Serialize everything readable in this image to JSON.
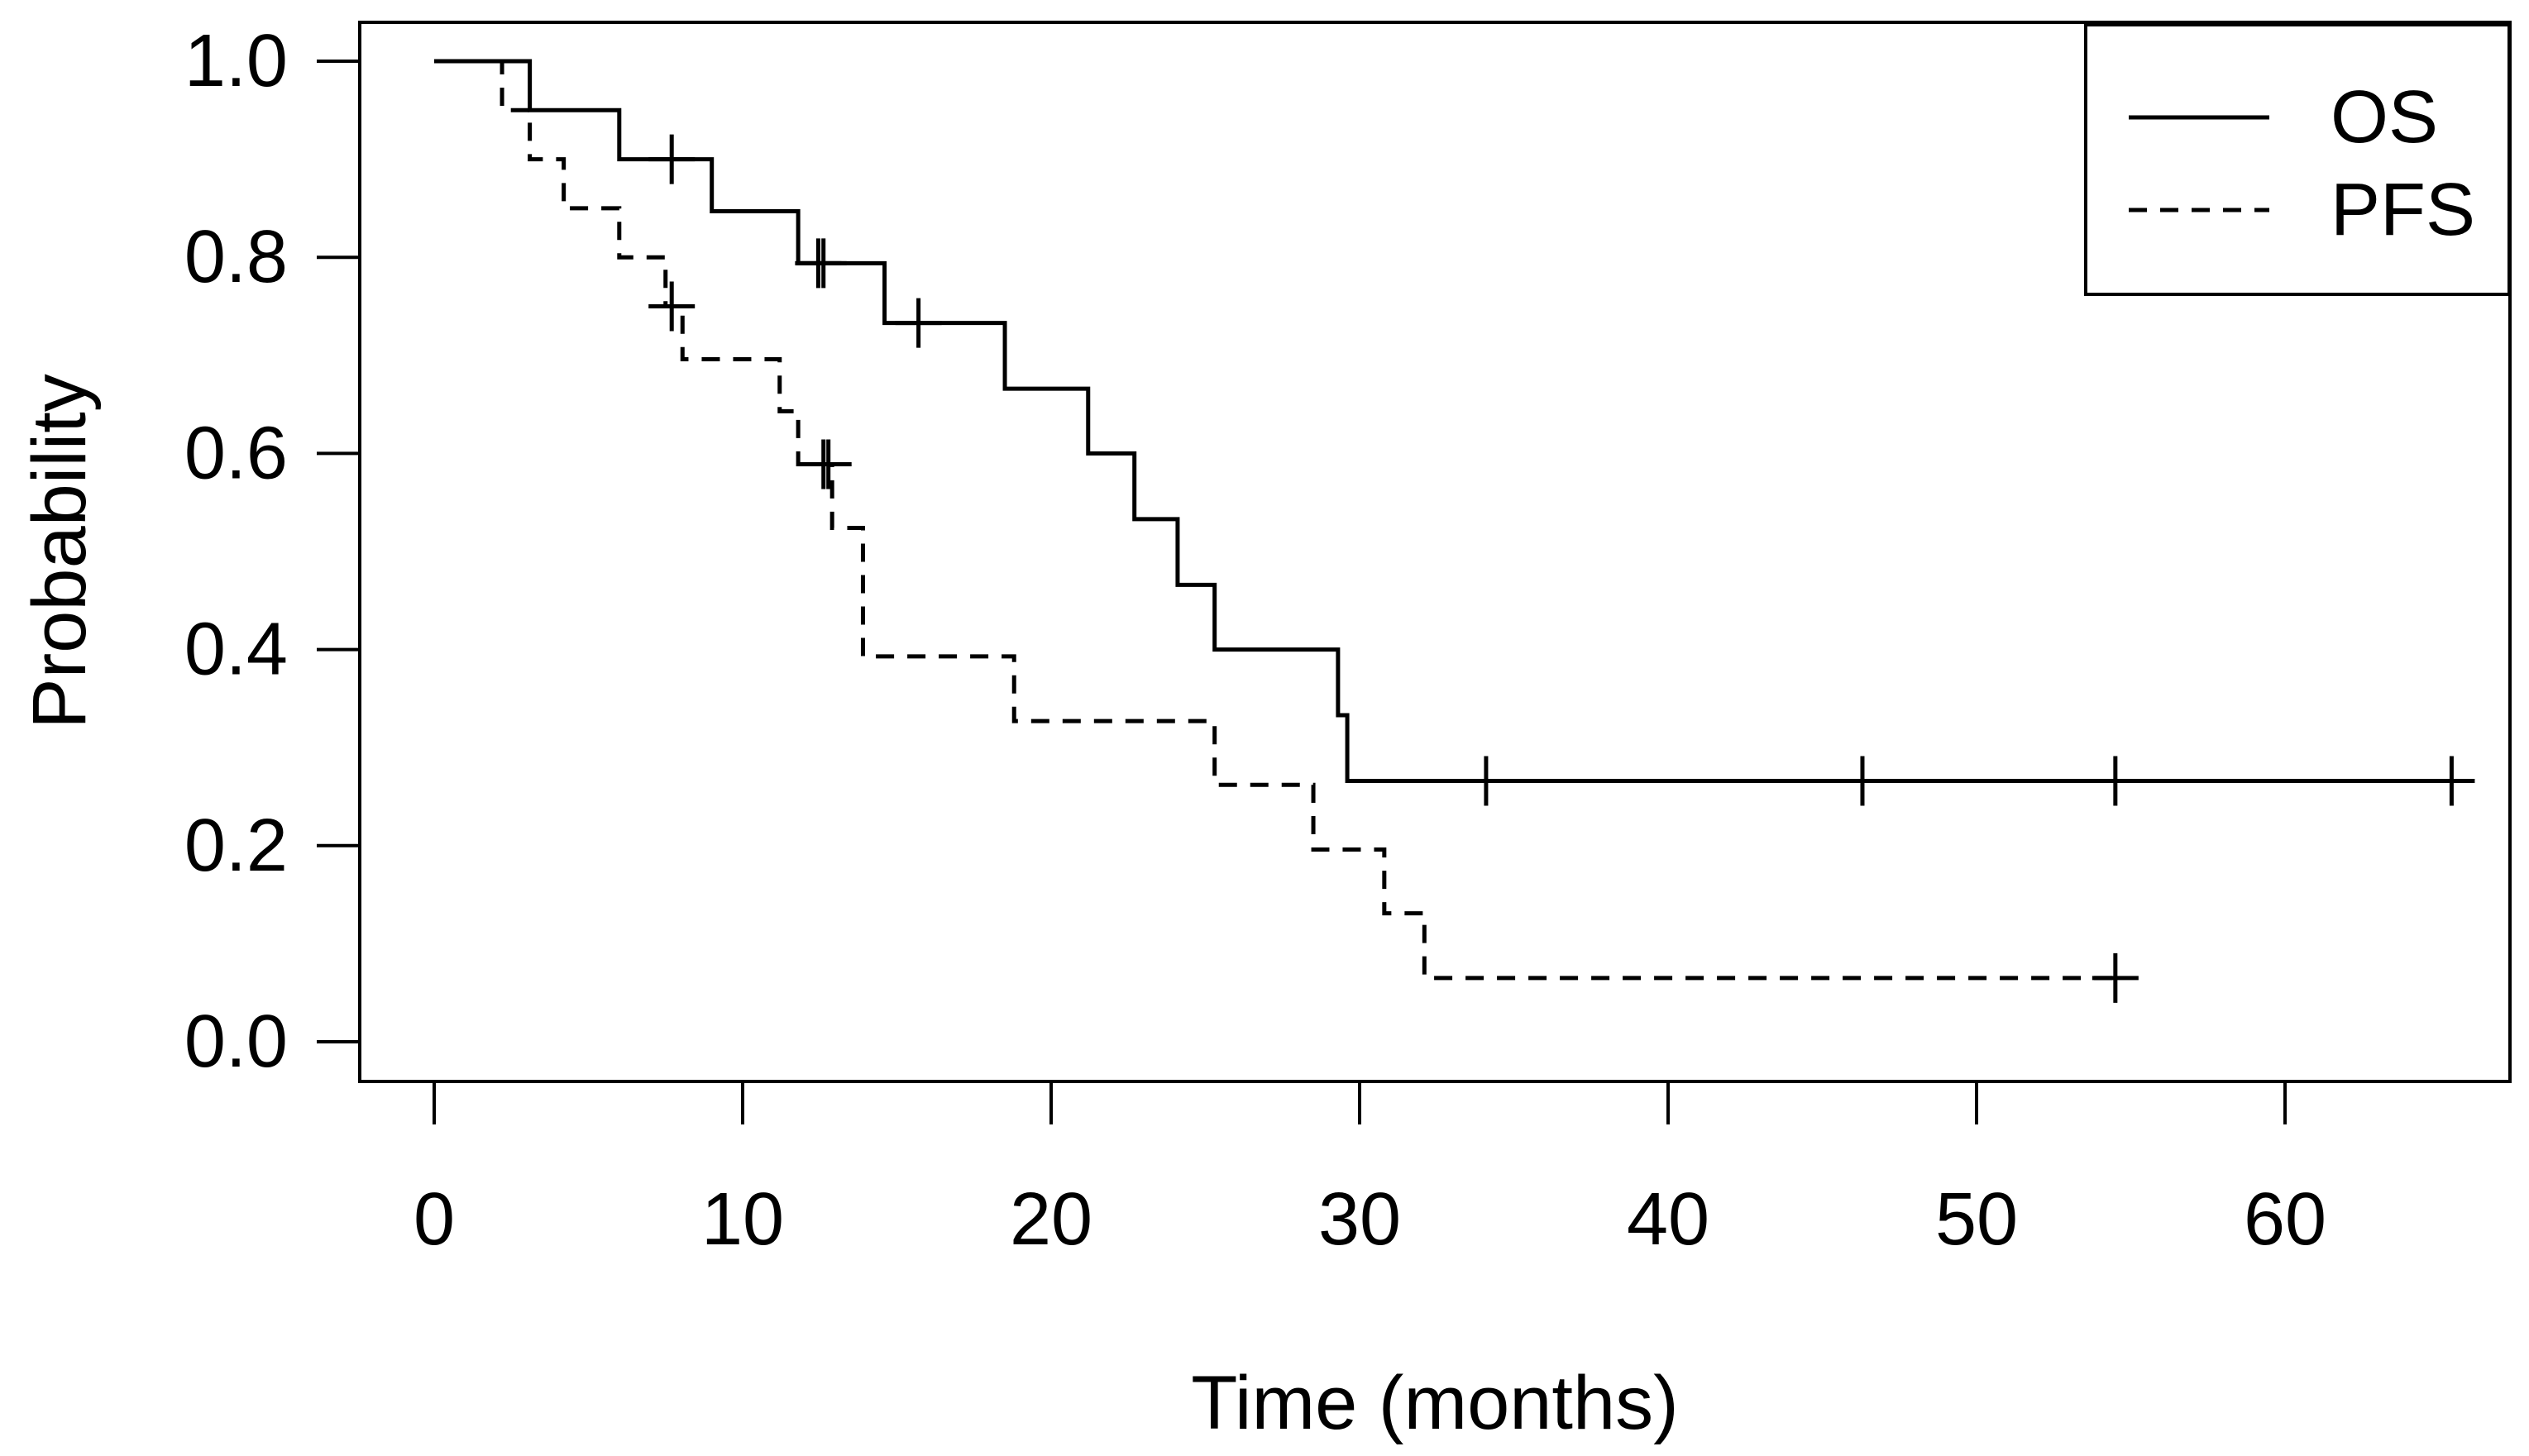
{
  "chart_data": {
    "type": "line",
    "subtype": "kaplan-meier-step-curves",
    "title": "",
    "xlabel": "Time (months)",
    "ylabel": "Probability",
    "xlim": [
      0,
      65.6
    ],
    "ylim": [
      0,
      1
    ],
    "grid": false,
    "legend_position": "topright",
    "x_ticks": {
      "values": [
        0,
        10,
        20,
        30,
        40,
        50,
        60
      ],
      "labels": [
        "0",
        "10",
        "20",
        "30",
        "40",
        "50",
        "60"
      ]
    },
    "y_ticks": {
      "values": [
        0.0,
        0.2,
        0.4,
        0.6,
        0.8,
        1.0
      ],
      "labels": [
        "0.0",
        "0.2",
        "0.4",
        "0.6",
        "0.8",
        "1.0"
      ]
    },
    "series": [
      {
        "name": "OS",
        "line_style": "solid",
        "steps": [
          [
            0,
            1.0
          ],
          [
            3.1,
            0.95
          ],
          [
            6.0,
            0.9
          ],
          [
            9.0,
            0.847
          ],
          [
            11.8,
            0.794
          ],
          [
            14.6,
            0.733
          ],
          [
            18.5,
            0.666
          ],
          [
            21.2,
            0.6
          ],
          [
            22.7,
            0.533
          ],
          [
            24.1,
            0.466
          ],
          [
            25.3,
            0.4
          ],
          [
            29.3,
            0.333
          ],
          [
            29.6,
            0.266
          ]
        ],
        "end_time": 65.6,
        "censor_marks": [
          [
            7.7,
            0.9
          ],
          [
            12.45,
            0.794
          ],
          [
            12.62,
            0.794
          ],
          [
            15.7,
            0.733
          ],
          [
            34.1,
            0.266
          ],
          [
            46.3,
            0.266
          ],
          [
            54.5,
            0.266
          ],
          [
            65.4,
            0.266
          ]
        ]
      },
      {
        "name": "PFS",
        "line_style": "dashed",
        "steps": [
          [
            0,
            1.0
          ],
          [
            2.2,
            0.95
          ],
          [
            3.1,
            0.9
          ],
          [
            4.2,
            0.85
          ],
          [
            6.0,
            0.8
          ],
          [
            7.5,
            0.75
          ],
          [
            8.05,
            0.696
          ],
          [
            11.2,
            0.643
          ],
          [
            11.8,
            0.589
          ],
          [
            12.9,
            0.524
          ],
          [
            13.9,
            0.393
          ],
          [
            18.8,
            0.327
          ],
          [
            25.3,
            0.262
          ],
          [
            28.5,
            0.196
          ],
          [
            30.8,
            0.131
          ],
          [
            32.1,
            0.065
          ]
        ],
        "end_time": 54.6,
        "censor_marks": [
          [
            7.7,
            0.75
          ],
          [
            12.62,
            0.589
          ],
          [
            12.78,
            0.589
          ],
          [
            54.5,
            0.065
          ]
        ]
      }
    ]
  },
  "colors": {
    "line": "#000000",
    "background": "#ffffff"
  }
}
